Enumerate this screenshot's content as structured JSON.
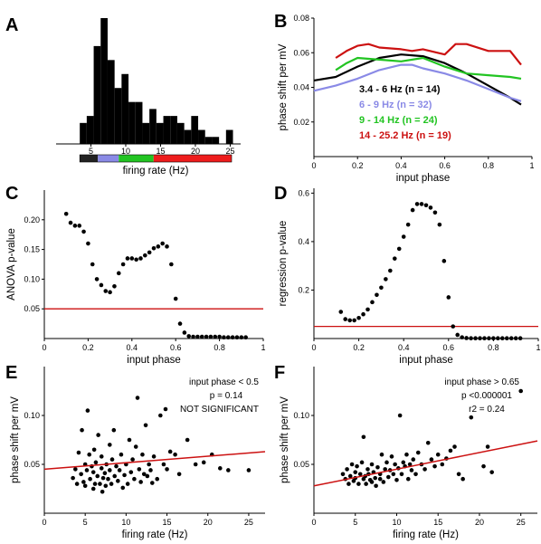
{
  "chart_data": [
    {
      "panel": "A",
      "type": "bar",
      "xlabel": "firing rate (Hz)",
      "ylabel": "",
      "xlim": [
        0,
        26.5
      ],
      "xticks": [
        5,
        10,
        15,
        20,
        25
      ],
      "bin_start": 3.4,
      "bin_width": 1.0,
      "values": [
        3,
        4,
        14,
        18,
        12,
        8,
        10,
        6,
        6,
        3,
        5,
        3,
        4,
        4,
        3,
        2,
        4,
        2,
        1,
        1,
        0,
        2
      ],
      "color_bands": [
        {
          "from": 3.4,
          "to": 6,
          "color": "#222222"
        },
        {
          "from": 6,
          "to": 9,
          "color": "#8a8ae6"
        },
        {
          "from": 9,
          "to": 14,
          "color": "#22c422"
        },
        {
          "from": 14,
          "to": 25.2,
          "color": "#ee1c1c"
        }
      ]
    },
    {
      "panel": "B",
      "type": "line",
      "xlabel": "input phase",
      "ylabel": "phase shift per mV",
      "xlim": [
        0,
        1
      ],
      "ylim": [
        0,
        0.08
      ],
      "xticks": [
        0,
        0.2,
        0.4,
        0.6,
        0.8,
        1
      ],
      "xtick_labels": [
        "0",
        "0.2",
        "0.4",
        "0.6",
        "0.8",
        "1"
      ],
      "yticks": [
        0.02,
        0.04,
        0.06,
        0.08
      ],
      "series": [
        {
          "name": "3.4 - 6 Hz (n = 14)",
          "color": "#000000",
          "x": [
            0,
            0.1,
            0.2,
            0.3,
            0.4,
            0.5,
            0.6,
            0.7,
            0.8,
            0.9,
            0.95
          ],
          "y": [
            0.044,
            0.046,
            0.052,
            0.057,
            0.059,
            0.058,
            0.054,
            0.048,
            0.041,
            0.034,
            0.03
          ]
        },
        {
          "name": "6 - 9 Hz (n = 32)",
          "color": "#8a8ae6",
          "x": [
            0,
            0.1,
            0.2,
            0.3,
            0.4,
            0.45,
            0.5,
            0.6,
            0.7,
            0.8,
            0.9,
            0.95
          ],
          "y": [
            0.038,
            0.041,
            0.045,
            0.05,
            0.053,
            0.053,
            0.051,
            0.048,
            0.044,
            0.039,
            0.034,
            0.032
          ]
        },
        {
          "name": "9 - 14 Hz (n = 24)",
          "color": "#22c422",
          "x": [
            0.1,
            0.15,
            0.2,
            0.3,
            0.4,
            0.5,
            0.6,
            0.7,
            0.8,
            0.9,
            0.95
          ],
          "y": [
            0.05,
            0.054,
            0.057,
            0.056,
            0.055,
            0.057,
            0.052,
            0.048,
            0.047,
            0.046,
            0.045
          ]
        },
        {
          "name": "14 - 25.2 Hz (n = 19)",
          "color": "#cc1111",
          "x": [
            0.1,
            0.15,
            0.2,
            0.25,
            0.3,
            0.4,
            0.45,
            0.5,
            0.6,
            0.65,
            0.7,
            0.8,
            0.9,
            0.95
          ],
          "y": [
            0.057,
            0.061,
            0.064,
            0.065,
            0.063,
            0.062,
            0.061,
            0.062,
            0.059,
            0.065,
            0.065,
            0.061,
            0.061,
            0.053
          ]
        }
      ]
    },
    {
      "panel": "C",
      "type": "scatter",
      "xlabel": "input phase",
      "ylabel": "ANOVA p-value",
      "xlim": [
        0,
        1
      ],
      "ylim": [
        0,
        0.25
      ],
      "xticks": [
        0,
        0.2,
        0.4,
        0.6,
        0.8,
        1
      ],
      "xtick_labels": [
        "0",
        "0.2",
        "0.4",
        "0.6",
        "0.8",
        "1"
      ],
      "yticks": [
        0.05,
        0.1,
        0.15,
        0.2
      ],
      "ytick_labels": [
        "0.05",
        "0.10",
        "0.15",
        "0.20"
      ],
      "hline": {
        "y": 0.05,
        "color": "#cc1111"
      },
      "x": [
        0.1,
        0.12,
        0.14,
        0.16,
        0.18,
        0.2,
        0.22,
        0.24,
        0.26,
        0.28,
        0.3,
        0.32,
        0.34,
        0.36,
        0.38,
        0.4,
        0.42,
        0.44,
        0.46,
        0.48,
        0.5,
        0.52,
        0.54,
        0.56,
        0.58,
        0.6,
        0.62,
        0.64,
        0.66,
        0.68,
        0.7,
        0.72,
        0.74,
        0.76,
        0.78,
        0.8,
        0.82,
        0.84,
        0.86,
        0.88,
        0.9,
        0.92
      ],
      "y": [
        0.21,
        0.195,
        0.19,
        0.19,
        0.18,
        0.16,
        0.125,
        0.1,
        0.09,
        0.08,
        0.078,
        0.088,
        0.11,
        0.125,
        0.135,
        0.135,
        0.133,
        0.135,
        0.14,
        0.145,
        0.152,
        0.155,
        0.16,
        0.155,
        0.125,
        0.067,
        0.025,
        0.01,
        0.004,
        0.003,
        0.003,
        0.003,
        0.003,
        0.003,
        0.003,
        0.003,
        0.002,
        0.002,
        0.002,
        0.002,
        0.002,
        0.002
      ]
    },
    {
      "panel": "D",
      "type": "scatter",
      "xlabel": "input phase",
      "ylabel": "regression p-value",
      "xlim": [
        0,
        1
      ],
      "ylim": [
        0,
        0.62
      ],
      "xticks": [
        0,
        0.2,
        0.4,
        0.6,
        0.8,
        1
      ],
      "xtick_labels": [
        "0",
        "0.2",
        "0.4",
        "0.6",
        "0.8",
        "1"
      ],
      "yticks": [
        0.2,
        0.4,
        0.6
      ],
      "ytick_labels": [
        "0.2",
        "0.4",
        "0.6"
      ],
      "hline": {
        "y": 0.05,
        "color": "#cc1111"
      },
      "x": [
        0.12,
        0.14,
        0.16,
        0.18,
        0.2,
        0.22,
        0.24,
        0.26,
        0.28,
        0.3,
        0.32,
        0.34,
        0.36,
        0.38,
        0.4,
        0.42,
        0.44,
        0.46,
        0.48,
        0.5,
        0.52,
        0.54,
        0.56,
        0.58,
        0.6,
        0.62,
        0.64,
        0.66,
        0.68,
        0.7,
        0.72,
        0.74,
        0.76,
        0.78,
        0.8,
        0.82,
        0.84,
        0.86,
        0.88,
        0.9,
        0.92
      ],
      "y": [
        0.11,
        0.08,
        0.075,
        0.075,
        0.085,
        0.1,
        0.12,
        0.15,
        0.18,
        0.21,
        0.245,
        0.28,
        0.33,
        0.37,
        0.42,
        0.47,
        0.53,
        0.555,
        0.555,
        0.55,
        0.54,
        0.52,
        0.47,
        0.32,
        0.17,
        0.05,
        0.015,
        0.005,
        0.002,
        0.001,
        0.001,
        0.001,
        0.001,
        0.001,
        0.001,
        0.001,
        0.001,
        0.001,
        0.001,
        0.001,
        0.001
      ]
    },
    {
      "panel": "E",
      "type": "scatter",
      "xlabel": "firing rate (Hz)",
      "ylabel": "phase shift per mV",
      "xlim": [
        0,
        27
      ],
      "ylim": [
        0,
        0.15
      ],
      "xticks": [
        0,
        5,
        10,
        15,
        20,
        25
      ],
      "xtick_labels": [
        "0",
        "5",
        "10",
        "15",
        "20",
        "25"
      ],
      "yticks": [
        0.05,
        0.1
      ],
      "ytick_labels": [
        "0.05",
        "0.10"
      ],
      "annotations": [
        "input phase < 0.5",
        "p = 0.14",
        "NOT SIGNIFICANT"
      ],
      "fit_line": {
        "x": [
          0,
          27
        ],
        "y": [
          0.045,
          0.063
        ],
        "color": "#cc1111"
      },
      "x": [
        3.5,
        3.8,
        4,
        4.2,
        4.5,
        4.6,
        4.8,
        5,
        5,
        5.2,
        5.3,
        5.5,
        5.6,
        5.8,
        6,
        6,
        6.1,
        6.2,
        6.3,
        6.5,
        6.6,
        6.8,
        7,
        7,
        7.1,
        7.2,
        7.4,
        7.5,
        7.6,
        7.8,
        8,
        8,
        8.2,
        8.3,
        8.5,
        8.6,
        8.8,
        9,
        9.2,
        9.4,
        9.6,
        9.8,
        10,
        10.2,
        10.4,
        10.6,
        10.8,
        11,
        11.2,
        11.4,
        11.6,
        11.8,
        12,
        12.2,
        12.4,
        12.6,
        12.8,
        13,
        13.2,
        13.4,
        13.8,
        14.2,
        14.6,
        15,
        15.4,
        16,
        16.5,
        17.5,
        18.5,
        19.5,
        20.5,
        21.5,
        22.5,
        25
      ],
      "y": [
        0.036,
        0.045,
        0.03,
        0.062,
        0.04,
        0.085,
        0.032,
        0.028,
        0.05,
        0.044,
        0.105,
        0.06,
        0.035,
        0.048,
        0.025,
        0.042,
        0.065,
        0.03,
        0.052,
        0.038,
        0.08,
        0.03,
        0.046,
        0.058,
        0.022,
        0.036,
        0.041,
        0.028,
        0.05,
        0.035,
        0.044,
        0.07,
        0.03,
        0.055,
        0.085,
        0.038,
        0.048,
        0.033,
        0.044,
        0.06,
        0.026,
        0.039,
        0.05,
        0.03,
        0.075,
        0.042,
        0.055,
        0.035,
        0.068,
        0.118,
        0.045,
        0.032,
        0.06,
        0.04,
        0.09,
        0.038,
        0.05,
        0.044,
        0.031,
        0.058,
        0.035,
        0.1,
        0.05,
        0.045,
        0.063,
        0.06,
        0.04,
        0.075,
        0.05,
        0.052,
        0.06,
        0.046,
        0.044,
        0.044
      ]
    },
    {
      "panel": "F",
      "type": "scatter",
      "xlabel": "firing rate (Hz)",
      "ylabel": "phase shift per mV",
      "xlim": [
        0,
        27
      ],
      "ylim": [
        0,
        0.15
      ],
      "xticks": [
        0,
        5,
        10,
        15,
        20,
        25
      ],
      "xtick_labels": [
        "0",
        "5",
        "10",
        "15",
        "20",
        "25"
      ],
      "yticks": [
        0.05,
        0.1
      ],
      "ytick_labels": [
        "0.05",
        "0.10"
      ],
      "annotations": [
        "input phase > 0.65",
        "p <0.000001",
        "r2 = 0.24"
      ],
      "fit_line": {
        "x": [
          0,
          27
        ],
        "y": [
          0.028,
          0.074
        ],
        "color": "#cc1111"
      },
      "x": [
        3.5,
        3.8,
        4,
        4.2,
        4.4,
        4.6,
        4.8,
        5,
        5,
        5.2,
        5.4,
        5.6,
        5.8,
        6,
        6,
        6.2,
        6.3,
        6.5,
        6.6,
        6.8,
        7,
        7,
        7.2,
        7.4,
        7.5,
        7.7,
        8,
        8,
        8.2,
        8.4,
        8.6,
        8.8,
        9,
        9.2,
        9.4,
        9.6,
        9.8,
        10,
        10.2,
        10.4,
        10.6,
        10.8,
        11,
        11.2,
        11.4,
        11.6,
        11.8,
        12,
        12.3,
        12.6,
        13,
        13.4,
        13.8,
        14.2,
        14.6,
        15,
        15.5,
        16,
        16.5,
        17,
        17.5,
        18,
        19,
        20.5,
        21,
        21.5,
        25
      ],
      "y": [
        0.04,
        0.035,
        0.045,
        0.03,
        0.038,
        0.05,
        0.033,
        0.042,
        0.036,
        0.048,
        0.03,
        0.04,
        0.052,
        0.035,
        0.078,
        0.038,
        0.03,
        0.045,
        0.04,
        0.034,
        0.05,
        0.032,
        0.042,
        0.036,
        0.028,
        0.047,
        0.04,
        0.035,
        0.06,
        0.032,
        0.045,
        0.052,
        0.037,
        0.044,
        0.058,
        0.04,
        0.05,
        0.034,
        0.046,
        0.1,
        0.04,
        0.052,
        0.048,
        0.06,
        0.035,
        0.05,
        0.044,
        0.055,
        0.04,
        0.062,
        0.05,
        0.045,
        0.072,
        0.055,
        0.048,
        0.06,
        0.05,
        0.056,
        0.064,
        0.068,
        0.04,
        0.035,
        0.098,
        0.048,
        0.068,
        0.042,
        0.125
      ]
    }
  ]
}
